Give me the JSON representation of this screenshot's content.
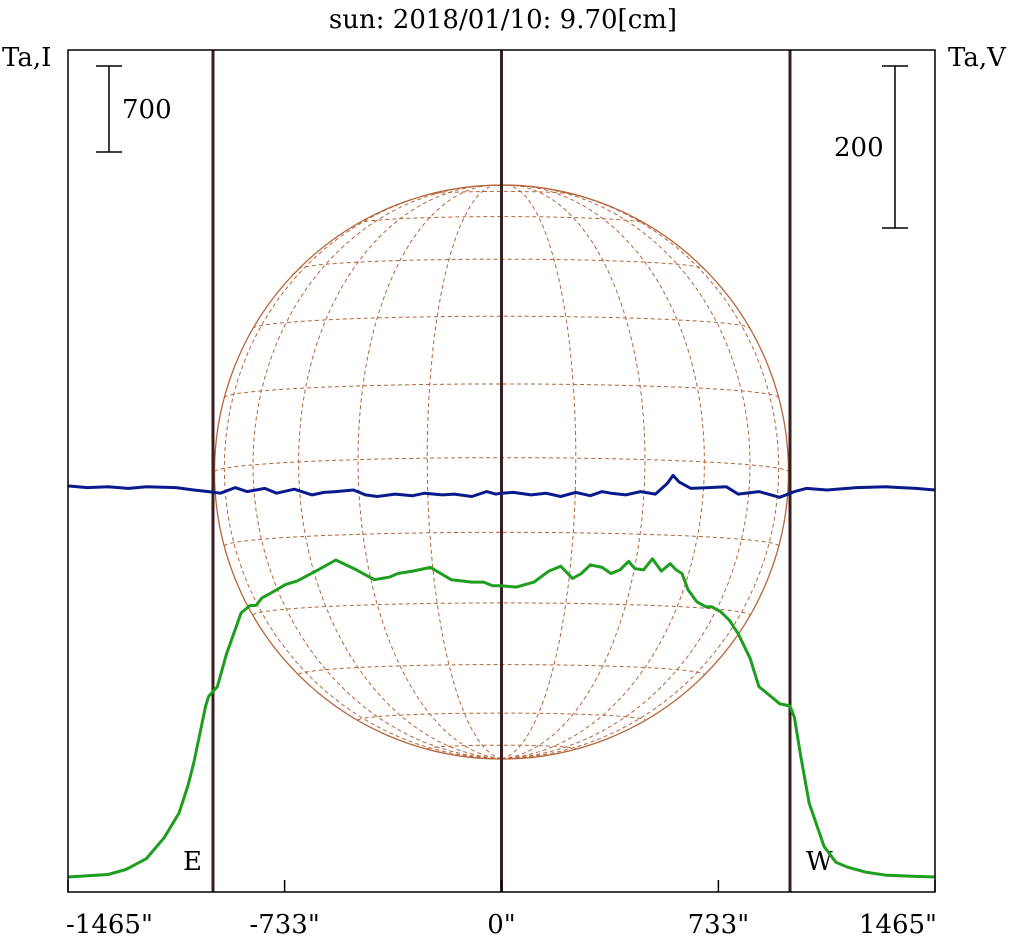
{
  "chart_data": {
    "type": "line",
    "title": "sun: 2018/01/10: 9.70[cm]",
    "left_axis_label": "Ta,I",
    "right_axis_label": "Ta,V",
    "left_scale_bar": {
      "label": "700",
      "value": 700
    },
    "right_scale_bar": {
      "label": "200",
      "value": 200
    },
    "xlim": [
      -1465,
      1465
    ],
    "x_ticks": [
      {
        "value": -1465,
        "label": "-1465\""
      },
      {
        "value": -733,
        "label": "-733\""
      },
      {
        "value": 0,
        "label": "0\""
      },
      {
        "value": 733,
        "label": "733\""
      },
      {
        "value": 1465,
        "label": "1465\""
      }
    ],
    "markers": [
      {
        "x": -975,
        "label": "E"
      },
      {
        "x": 0,
        "label": ""
      },
      {
        "x": 975,
        "label": "W"
      }
    ],
    "colors": {
      "title": "#1a1a6e",
      "intensity": "#1e9e1e",
      "polarization": "#0a1a8c",
      "markers": "#3a1e1e",
      "disk": "#b5653a"
    },
    "series": [
      {
        "name": "Ta,I",
        "color": "#1e9e1e",
        "x": [
          -1465,
          -1330,
          -1270,
          -1200,
          -1140,
          -1090,
          -1060,
          -1040,
          -1020,
          -1000,
          -990,
          -975,
          -960,
          -930,
          -880,
          -850,
          -830,
          -810,
          -780,
          -730,
          -690,
          -620,
          -560,
          -490,
          -430,
          -380,
          -350,
          -300,
          -240,
          -170,
          -100,
          -60,
          -30,
          0,
          50,
          110,
          160,
          200,
          240,
          270,
          300,
          340,
          370,
          400,
          430,
          450,
          480,
          510,
          540,
          570,
          590,
          610,
          630,
          660,
          690,
          710,
          740,
          770,
          800,
          840,
          870,
          910,
          940,
          960,
          975,
          990,
          1010,
          1040,
          1090,
          1130,
          1170,
          1230,
          1300,
          1400,
          1465
        ],
        "y": [
          0,
          20,
          60,
          150,
          320,
          520,
          740,
          930,
          1160,
          1390,
          1470,
          1510,
          1550,
          1810,
          2150,
          2210,
          2210,
          2270,
          2310,
          2380,
          2410,
          2500,
          2580,
          2500,
          2420,
          2440,
          2470,
          2490,
          2520,
          2420,
          2400,
          2400,
          2370,
          2370,
          2360,
          2400,
          2490,
          2530,
          2430,
          2470,
          2540,
          2520,
          2470,
          2500,
          2570,
          2510,
          2500,
          2590,
          2490,
          2550,
          2500,
          2470,
          2340,
          2240,
          2200,
          2200,
          2160,
          2090,
          1980,
          1780,
          1550,
          1470,
          1410,
          1400,
          1390,
          1300,
          1000,
          600,
          250,
          120,
          80,
          40,
          15,
          5,
          0
        ]
      },
      {
        "name": "Ta,V",
        "color": "#0a1a8c",
        "x": [
          -1465,
          -1400,
          -1330,
          -1260,
          -1200,
          -1100,
          -1040,
          -990,
          -950,
          -900,
          -860,
          -800,
          -760,
          -700,
          -640,
          -600,
          -560,
          -500,
          -460,
          -420,
          -360,
          -300,
          -260,
          -200,
          -160,
          -100,
          -50,
          -20,
          0,
          40,
          100,
          150,
          200,
          250,
          300,
          340,
          370,
          420,
          470,
          520,
          560,
          580,
          600,
          640,
          700,
          760,
          800,
          870,
          940,
          990,
          1030,
          1100,
          1200,
          1300,
          1400,
          1465
        ],
        "y": [
          5,
          3,
          4,
          2,
          4,
          3,
          0,
          -2,
          -4,
          3,
          -2,
          2,
          -4,
          1,
          -6,
          -3,
          -2,
          0,
          -6,
          -8,
          -5,
          -7,
          -4,
          -6,
          -5,
          -8,
          -2,
          -5,
          -4,
          -3,
          -6,
          -4,
          -8,
          -3,
          -7,
          -2,
          -4,
          -6,
          -2,
          -5,
          8,
          18,
          10,
          2,
          3,
          4,
          -5,
          -2,
          -9,
          -2,
          2,
          0,
          3,
          4,
          2,
          0
        ]
      }
    ]
  }
}
